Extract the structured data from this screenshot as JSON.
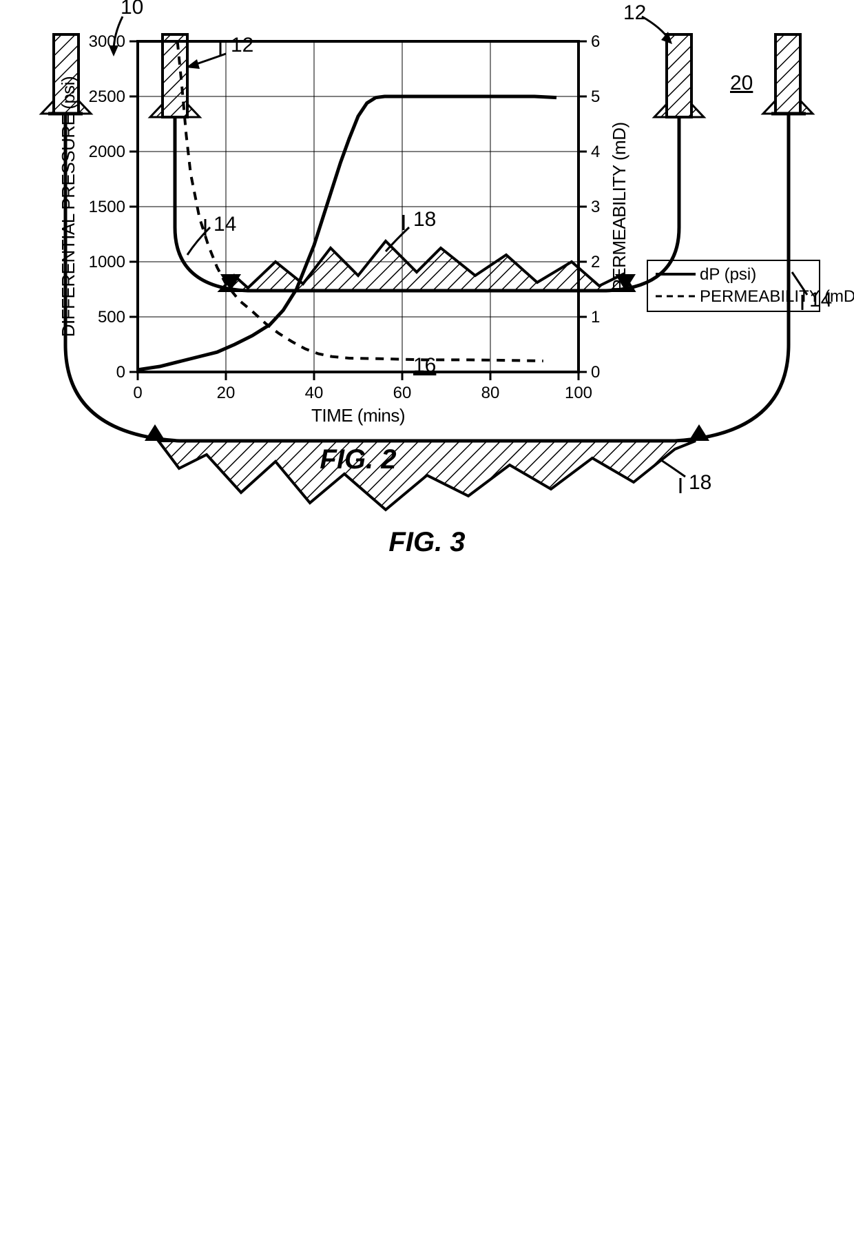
{
  "fig2": {
    "title": "FIG. 2",
    "title_fontsize": 40,
    "xlabel": "TIME (mins)",
    "ylabel_left": "DIFFERENTIAL PRESSURE (psi)",
    "ylabel_right": "PERMEABILITY (mD)",
    "label_fontsize": 26,
    "tick_fontsize": 24,
    "x": {
      "min": 0,
      "max": 100,
      "ticks": [
        0,
        20,
        40,
        60,
        80,
        100
      ]
    },
    "y_left": {
      "min": 0,
      "max": 3000,
      "ticks": [
        0,
        500,
        1000,
        1500,
        2000,
        2500,
        3000
      ]
    },
    "y_right": {
      "min": 0,
      "max": 6,
      "ticks": [
        0,
        1,
        2,
        3,
        4,
        5,
        6
      ]
    },
    "grid_color": "#000000",
    "grid_width": 1,
    "axis_color": "#000000",
    "axis_width": 4,
    "background_color": "#ffffff",
    "legend": {
      "entries": [
        {
          "label": "dP (psi)",
          "dash": "solid"
        },
        {
          "label": "PERMEABILITY (mD)",
          "dash": "dashed"
        }
      ],
      "fontsize": 24
    },
    "series": {
      "dP": {
        "color": "#000000",
        "width": 5,
        "dash": "solid",
        "points": [
          [
            0,
            20
          ],
          [
            5,
            50
          ],
          [
            10,
            100
          ],
          [
            15,
            150
          ],
          [
            18,
            180
          ],
          [
            22,
            250
          ],
          [
            26,
            330
          ],
          [
            30,
            430
          ],
          [
            33,
            560
          ],
          [
            36,
            750
          ],
          [
            38,
            950
          ],
          [
            40,
            1150
          ],
          [
            42,
            1400
          ],
          [
            44,
            1650
          ],
          [
            46,
            1900
          ],
          [
            48,
            2120
          ],
          [
            50,
            2320
          ],
          [
            52,
            2440
          ],
          [
            54,
            2490
          ],
          [
            56,
            2500
          ],
          [
            60,
            2500
          ],
          [
            70,
            2500
          ],
          [
            80,
            2500
          ],
          [
            90,
            2500
          ],
          [
            95,
            2490
          ]
        ]
      },
      "perm": {
        "color": "#000000",
        "width": 4,
        "dash": "12 10",
        "points": [
          [
            9,
            6.0
          ],
          [
            10,
            5.2
          ],
          [
            11,
            4.3
          ],
          [
            12,
            3.6
          ],
          [
            14,
            2.8
          ],
          [
            16,
            2.3
          ],
          [
            18,
            1.9
          ],
          [
            20,
            1.6
          ],
          [
            23,
            1.3
          ],
          [
            26,
            1.1
          ],
          [
            29,
            0.88
          ],
          [
            32,
            0.7
          ],
          [
            35,
            0.55
          ],
          [
            38,
            0.42
          ],
          [
            41,
            0.33
          ],
          [
            44,
            0.28
          ],
          [
            48,
            0.25
          ],
          [
            55,
            0.24
          ],
          [
            65,
            0.22
          ],
          [
            75,
            0.22
          ],
          [
            85,
            0.21
          ],
          [
            92,
            0.2
          ]
        ]
      }
    }
  },
  "fig3": {
    "title": "FIG. 3",
    "title_fontsize": 40,
    "line_color": "#000000",
    "line_width": 5,
    "hatch_spacing": 11,
    "refs": {
      "n10": "10",
      "n12": "12",
      "n14": "14",
      "n16": "16",
      "n18": "18",
      "n20": "20"
    }
  }
}
